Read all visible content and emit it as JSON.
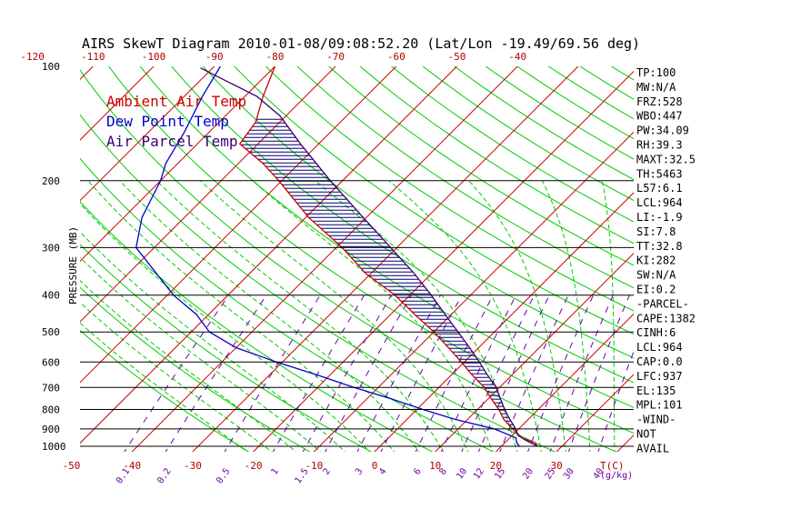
{
  "chart_data": {
    "type": "line",
    "subtype": "skew-T log-P diagram",
    "title": "AIRS SkewT Diagram 2010-01-08/09:08:52.20 (Lat/Lon -19.49/69.56 deg)",
    "ylabel": "PRESSURE (MB)",
    "xlabel_bottom_unit": "T(C)",
    "mixing_ratio_unit": "(g/kg)",
    "y_scale": "log",
    "ylim": [
      1050,
      100
    ],
    "pressure_ticks": [
      100,
      200,
      300,
      400,
      500,
      600,
      700,
      800,
      900,
      1000
    ],
    "top_temp_ticks": [
      -120,
      -110,
      -100,
      -90,
      -80,
      -70,
      -60,
      -50,
      -40
    ],
    "bottom_temp_ticks": [
      -50,
      -40,
      -30,
      -20,
      -10,
      0,
      10,
      20,
      30
    ],
    "mixing_ratio_ticks": [
      "0.1",
      "0.2",
      "0.5",
      "1",
      "1.5",
      "2",
      "3",
      "4",
      "6",
      "8",
      "10",
      "12",
      "15",
      "20",
      "25",
      "30",
      "40"
    ],
    "legend": [
      {
        "name": "Ambient Air Temp",
        "color": "#cc0000"
      },
      {
        "name": "Dew Point Temp",
        "color": "#0000cc"
      },
      {
        "name": "Air Parcel Temp",
        "color": "#3a0070"
      }
    ],
    "colors": {
      "isotherm": "#cc0000",
      "dry_adiabat": "#00cc00",
      "moist_adiabat": "#00cc00",
      "mixing_ratio": "#6a00b0",
      "isobar": "#000000",
      "cape_hatch": "#000070"
    },
    "series": [
      {
        "name": "Ambient Air Temp",
        "p": [
          1000,
          980,
          950,
          900,
          850,
          800,
          750,
          700,
          650,
          600,
          550,
          500,
          450,
          400,
          350,
          300,
          250,
          200,
          180,
          160,
          140,
          120,
          100
        ],
        "t": [
          26,
          25,
          22,
          19,
          16,
          13.5,
          10.5,
          7.5,
          3.5,
          -0.5,
          -5,
          -10,
          -16,
          -22.5,
          -31,
          -39,
          -49.5,
          -60.5,
          -66,
          -73,
          -74,
          -77,
          -80
        ]
      },
      {
        "name": "Dew Point Temp",
        "p": [
          1000,
          980,
          950,
          900,
          850,
          800,
          750,
          700,
          650,
          600,
          550,
          500,
          450,
          400,
          300,
          250,
          200,
          180,
          150,
          120,
          100
        ],
        "t": [
          23,
          22,
          21,
          16,
          8,
          1,
          -6,
          -14,
          -22,
          -31,
          -40,
          -47,
          -52,
          -59,
          -73,
          -77,
          -80,
          -82,
          -84,
          -87,
          -89
        ]
      },
      {
        "name": "Air Parcel Temp",
        "p": [
          1000,
          964,
          937,
          900,
          850,
          800,
          750,
          700,
          650,
          600,
          550,
          500,
          450,
          400,
          350,
          300,
          250,
          200,
          160,
          135,
          120,
          101
        ],
        "t": [
          26,
          23,
          21,
          19.5,
          17,
          14.5,
          12,
          9.5,
          6,
          2.5,
          -1.5,
          -6,
          -11,
          -16.5,
          -23,
          -31,
          -40.5,
          -52,
          -63,
          -71,
          -78,
          -92
        ]
      }
    ],
    "stats": [
      "TP:100",
      "MW:N/A",
      "FRZ:528",
      "WBO:447",
      "PW:34.09",
      "RH:39.3",
      "MAXT:32.5",
      "TH:5463",
      "L57:6.1",
      "LCL:964",
      "LI:-1.9",
      "SI:7.8",
      "TT:32.8",
      "KI:282",
      "SW:N/A",
      "EI:0.2",
      "-PARCEL-",
      "CAPE:1382",
      "CINH:6",
      "LCL:964",
      "CAP:0.0",
      "LFC:937",
      "EL:135",
      "MPL:101",
      "-WIND-",
      "NOT",
      "AVAIL"
    ]
  }
}
